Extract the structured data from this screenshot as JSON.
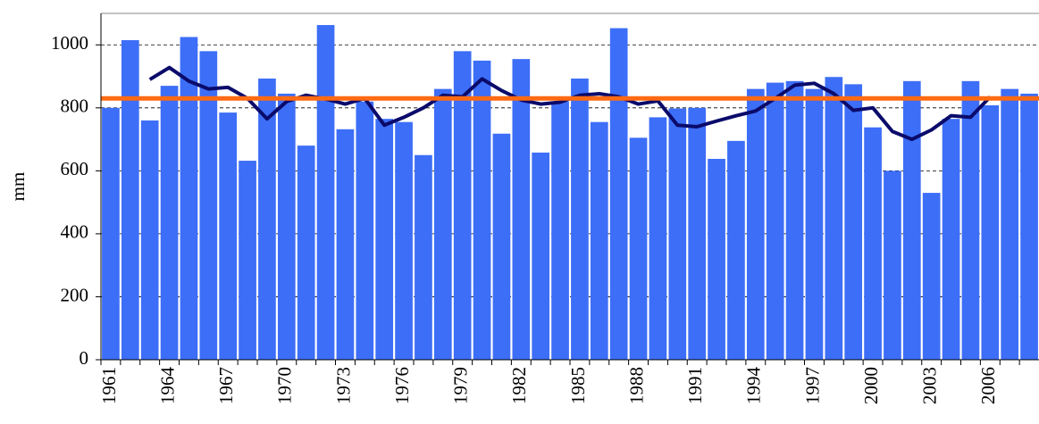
{
  "chart_data": {
    "type": "bar",
    "y_label": "mm",
    "categories": [
      "1961",
      null,
      null,
      "1964",
      null,
      null,
      "1967",
      null,
      null,
      "1970",
      null,
      null,
      "1973",
      null,
      null,
      "1976",
      null,
      null,
      "1979",
      null,
      null,
      "1982",
      null,
      null,
      "1985",
      null,
      null,
      "1988",
      null,
      null,
      "1991",
      null,
      null,
      "1994",
      null,
      null,
      "1997",
      null,
      null,
      "2000",
      null,
      null,
      "2003",
      null,
      null,
      "2006",
      null,
      null
    ],
    "series": [
      {
        "type": "bar",
        "color": "#3d6ef7",
        "values": [
          800,
          1015,
          760,
          870,
          1025,
          980,
          785,
          632,
          893,
          845,
          680,
          1063,
          732,
          820,
          765,
          755,
          650,
          860,
          980,
          950,
          718,
          955,
          658,
          820,
          893,
          755,
          1053,
          705,
          770,
          798,
          800,
          638,
          695,
          860,
          880,
          885,
          860,
          898,
          875,
          738,
          600,
          885,
          530,
          765,
          885,
          808,
          860,
          845
        ]
      },
      {
        "type": "line",
        "color": "#0b0b6b",
        "values": [
          null,
          null,
          890,
          928,
          885,
          860,
          865,
          830,
          765,
          820,
          840,
          828,
          812,
          830,
          745,
          770,
          800,
          840,
          835,
          892,
          855,
          825,
          812,
          818,
          840,
          845,
          835,
          812,
          822,
          745,
          740,
          758,
          775,
          790,
          830,
          872,
          878,
          845,
          792,
          800,
          725,
          700,
          730,
          775,
          770,
          835,
          null,
          null
        ]
      }
    ],
    "mean_line": {
      "value": 830,
      "color": "#ff6a13"
    },
    "ylim": [
      0,
      1100
    ],
    "yticks": [
      0,
      200,
      400,
      600,
      800,
      1000
    ],
    "grid": true
  }
}
